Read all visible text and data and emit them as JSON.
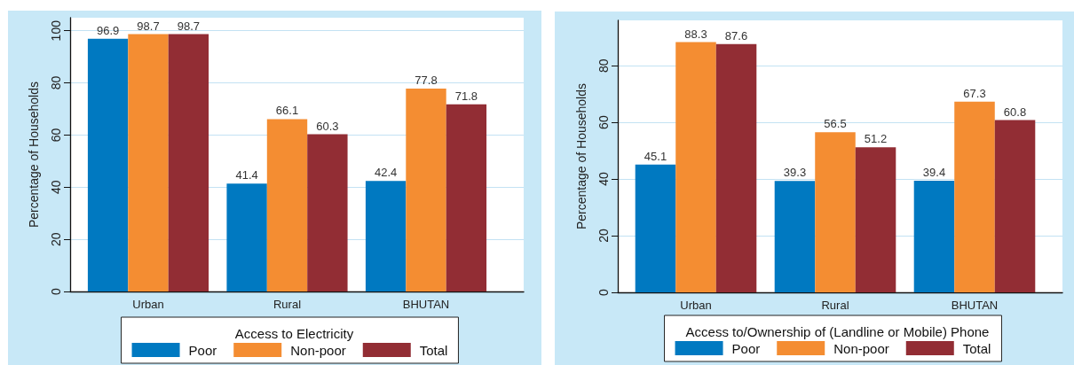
{
  "chart_data": [
    {
      "type": "bar",
      "categories": [
        "Urban",
        "Rural",
        "BHUTAN"
      ],
      "ylabel": "Percentage of Households",
      "legend_title": "Access to Electricity",
      "series": [
        {
          "name": "Poor",
          "color": "#0079c1",
          "values": [
            96.9,
            41.4,
            42.4
          ]
        },
        {
          "name": "Non-poor",
          "color": "#f48d32",
          "values": [
            98.7,
            66.1,
            77.8
          ]
        },
        {
          "name": "Total",
          "color": "#922d34",
          "values": [
            98.7,
            60.3,
            71.8
          ]
        }
      ],
      "ylim": [
        0,
        105
      ],
      "yticks": [
        0,
        20,
        40,
        60,
        80,
        100
      ],
      "grid": "y",
      "legend": "bottom",
      "data_labels": true
    },
    {
      "type": "bar",
      "categories": [
        "Urban",
        "Rural",
        "BHUTAN"
      ],
      "ylabel": "Percentage of Households",
      "legend_title": "Access to/Ownership of (Landline or Mobile) Phone",
      "series": [
        {
          "name": "Poor",
          "color": "#0079c1",
          "values": [
            45.1,
            39.3,
            39.4
          ]
        },
        {
          "name": "Non-poor",
          "color": "#f48d32",
          "values": [
            88.3,
            56.5,
            67.3
          ]
        },
        {
          "name": "Total",
          "color": "#922d34",
          "values": [
            87.6,
            51.2,
            60.8
          ]
        }
      ],
      "ylim": [
        0,
        96
      ],
      "yticks": [
        0,
        20,
        40,
        60,
        80
      ],
      "grid": "y",
      "legend": "bottom",
      "data_labels": true
    }
  ]
}
